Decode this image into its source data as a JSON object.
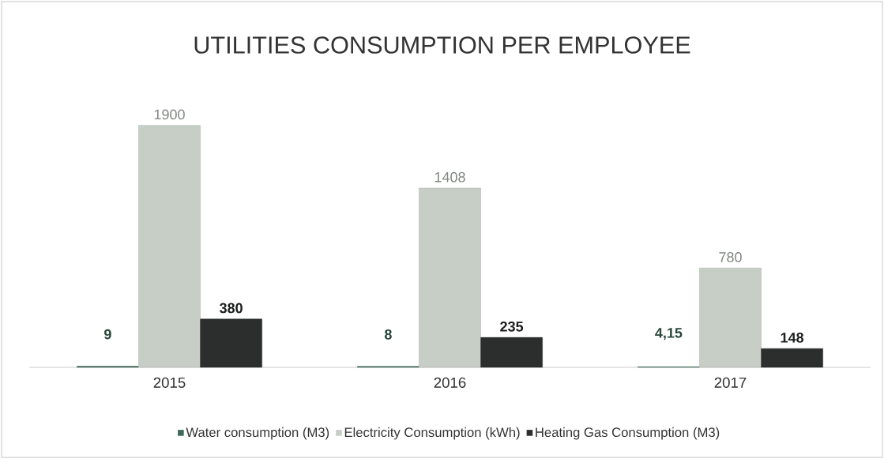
{
  "chart_data": {
    "type": "bar",
    "title": "UTILITIES CONSUMPTION PER EMPLOYEE",
    "categories": [
      "2015",
      "2016",
      "2017"
    ],
    "series": [
      {
        "name": "Water consumption (M3)",
        "color": "#3d6b57",
        "values": [
          9,
          8,
          4.15
        ],
        "value_labels": [
          "9",
          "8",
          "4,15"
        ]
      },
      {
        "name": "Electricity Consumption (kWh)",
        "color": "#c7cec6",
        "values": [
          1900,
          1408,
          780
        ],
        "value_labels": [
          "1900",
          "1408",
          "780"
        ]
      },
      {
        "name": "Heating Gas Consumption (M3)",
        "color": "#2b2e2d",
        "values": [
          380,
          235,
          148
        ],
        "value_labels": [
          "380",
          "235",
          "148"
        ]
      }
    ],
    "legend": "bottom"
  }
}
